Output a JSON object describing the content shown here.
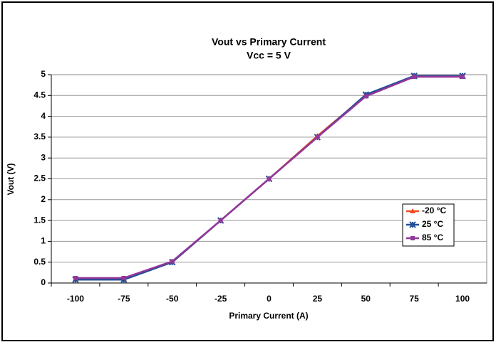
{
  "chart_data": {
    "type": "line",
    "title": "Vout vs Primary Current",
    "subtitle": "Vcc = 5 V",
    "x_label": "Primary Current (A)",
    "y_label": "Vout (V)",
    "categories": [
      "-100",
      "-75",
      "-50",
      "-25",
      "0",
      "25",
      "50",
      "75",
      "100"
    ],
    "series": [
      {
        "name": "-20 °C",
        "color": "#f04a23",
        "marker": "triangle",
        "values": [
          0.1,
          0.1,
          0.5,
          1.5,
          2.5,
          3.53,
          4.5,
          4.95,
          4.95
        ]
      },
      {
        "name": "25 °C",
        "color": "#1f4e96",
        "marker": "star",
        "values": [
          0.08,
          0.08,
          0.5,
          1.5,
          2.5,
          3.5,
          4.52,
          4.97,
          4.97
        ]
      },
      {
        "name": "85 °C",
        "color": "#93379b",
        "marker": "square",
        "values": [
          0.12,
          0.12,
          0.52,
          1.5,
          2.5,
          3.5,
          4.48,
          4.95,
          4.95
        ]
      }
    ],
    "ylim": [
      0,
      5
    ],
    "yticks": [
      0,
      0.5,
      1,
      1.5,
      2,
      2.5,
      3,
      3.5,
      4,
      4.5,
      5
    ],
    "grid": true,
    "legend": "right"
  }
}
